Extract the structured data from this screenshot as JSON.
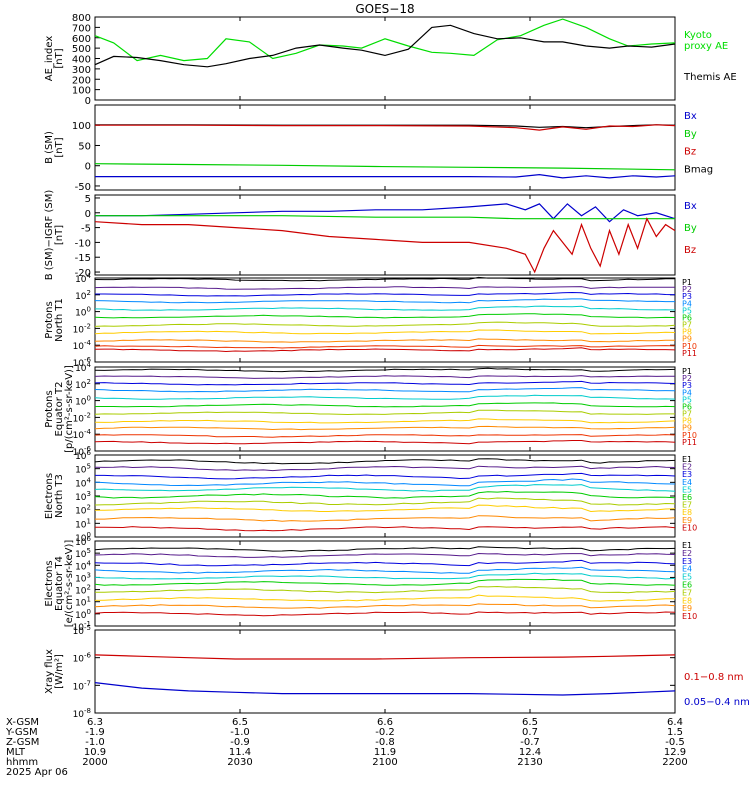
{
  "title": "GOES−18",
  "date_label": "2025 Apr 06",
  "chart_data": [
    {
      "id": "ae",
      "type": "line",
      "ylabel": [
        "AE_index",
        "[nT]"
      ],
      "ylim": [
        0,
        800
      ],
      "yticks": [
        "0",
        "100",
        "200",
        "300",
        "400",
        "500",
        "600",
        "700",
        "800"
      ],
      "legend": [
        {
          "text": "Kyoto",
          "color": "#00dd00"
        },
        {
          "text": "proxy AE",
          "color": "#00dd00"
        },
        {
          "text": "Themis AE",
          "color": "#000000"
        }
      ],
      "series": [
        {
          "name": "Kyoto proxy AE",
          "color": "#00dd00",
          "x": [
            0,
            4,
            9,
            14,
            19,
            24,
            28,
            33,
            38,
            43,
            48,
            53,
            57,
            62,
            67,
            72,
            76,
            81,
            86,
            91,
            96,
            100,
            105,
            110,
            114,
            119,
            124
          ],
          "values": [
            620,
            550,
            380,
            430,
            380,
            400,
            590,
            560,
            400,
            450,
            530,
            520,
            500,
            590,
            520,
            460,
            450,
            430,
            580,
            620,
            720,
            780,
            700,
            590,
            520,
            540,
            550
          ]
        },
        {
          "name": "Themis AE",
          "color": "#000000",
          "x": [
            0,
            4,
            9,
            14,
            19,
            24,
            28,
            33,
            38,
            43,
            48,
            53,
            57,
            62,
            67,
            72,
            76,
            81,
            86,
            91,
            96,
            100,
            105,
            110,
            114,
            119,
            124
          ],
          "values": [
            340,
            420,
            410,
            380,
            340,
            320,
            350,
            400,
            430,
            500,
            530,
            500,
            480,
            430,
            490,
            700,
            720,
            640,
            590,
            600,
            560,
            560,
            520,
            500,
            520,
            510,
            540
          ]
        }
      ]
    },
    {
      "id": "b",
      "type": "line",
      "ylabel": [
        "B (SM)",
        "[nT]"
      ],
      "ylim": [
        -60,
        150
      ],
      "yticks": [
        "-50",
        "0",
        "50",
        "100"
      ],
      "ytick_values": [
        -50,
        0,
        50,
        100
      ],
      "legend": [
        {
          "text": "Bx",
          "color": "#0000cc"
        },
        {
          "text": "By",
          "color": "#00cc00"
        },
        {
          "text": "Bz",
          "color": "#cc0000"
        },
        {
          "text": "Bmag",
          "color": "#000000"
        }
      ],
      "series": [
        {
          "name": "Bmag",
          "color": "#000000",
          "x": [
            0,
            20,
            40,
            60,
            80,
            90,
            95,
            100,
            105,
            110,
            115,
            120,
            124
          ],
          "values": [
            101,
            101,
            100,
            100,
            100,
            98,
            95,
            97,
            94,
            97,
            99,
            101,
            100
          ]
        },
        {
          "name": "Bz",
          "color": "#cc0000",
          "x": [
            0,
            20,
            40,
            60,
            80,
            90,
            95,
            100,
            105,
            110,
            115,
            120,
            124
          ],
          "values": [
            100,
            100,
            99,
            99,
            98,
            94,
            88,
            96,
            90,
            98,
            97,
            101,
            99
          ]
        },
        {
          "name": "By",
          "color": "#00cc00",
          "x": [
            0,
            20,
            40,
            60,
            80,
            100,
            124
          ],
          "values": [
            5,
            3,
            1,
            -2,
            -4,
            -6,
            -10
          ]
        },
        {
          "name": "Bx",
          "color": "#0000cc",
          "x": [
            0,
            20,
            40,
            60,
            80,
            90,
            95,
            100,
            105,
            110,
            115,
            120,
            124
          ],
          "values": [
            -27,
            -27,
            -27,
            -27,
            -27,
            -28,
            -22,
            -30,
            -25,
            -30,
            -25,
            -28,
            -25
          ]
        }
      ]
    },
    {
      "id": "bigrf",
      "type": "line",
      "ylabel": [
        "B (SM)−IGRF (SM)",
        "[nT]"
      ],
      "ylim": [
        -21,
        6
      ],
      "yticks": [
        "-20",
        "-15",
        "-10",
        "-5",
        "0",
        "5"
      ],
      "ytick_values": [
        -20,
        -15,
        -10,
        -5,
        0,
        5
      ],
      "legend": [
        {
          "text": "Bx",
          "color": "#0000cc"
        },
        {
          "text": "By",
          "color": "#00cc00"
        },
        {
          "text": "Bz",
          "color": "#cc0000"
        }
      ],
      "series": [
        {
          "name": "Bx",
          "color": "#0000cc",
          "x": [
            0,
            10,
            20,
            30,
            40,
            50,
            60,
            70,
            80,
            88,
            92,
            95,
            98,
            101,
            104,
            107,
            110,
            113,
            116,
            120,
            124
          ],
          "values": [
            -1,
            -1,
            -0.5,
            0,
            0.5,
            0.5,
            1,
            1,
            2,
            3,
            1,
            3,
            -2,
            3,
            -1,
            2,
            -3,
            1,
            -1,
            0,
            -2
          ]
        },
        {
          "name": "By",
          "color": "#00cc00",
          "x": [
            0,
            20,
            40,
            60,
            80,
            90,
            100,
            110,
            124
          ],
          "values": [
            -1,
            -1,
            -1,
            -1.5,
            -1.5,
            -2,
            -2,
            -2,
            -2
          ]
        },
        {
          "name": "Bz",
          "color": "#cc0000",
          "x": [
            0,
            10,
            20,
            30,
            40,
            50,
            60,
            70,
            80,
            88,
            92,
            94,
            96,
            98,
            100,
            102,
            104,
            106,
            108,
            110,
            112,
            114,
            116,
            118,
            120,
            122,
            124
          ],
          "values": [
            -3,
            -4,
            -4,
            -5,
            -6,
            -8,
            -9,
            -10,
            -10,
            -12,
            -14,
            -20,
            -12,
            -6,
            -10,
            -14,
            -4,
            -12,
            -18,
            -6,
            -14,
            -4,
            -12,
            -2,
            -8,
            -4,
            -6
          ]
        }
      ]
    },
    {
      "id": "pn",
      "type": "line",
      "log": true,
      "ylabel": [
        "Protons",
        "North T1"
      ],
      "ylim_exp": [
        -6,
        4
      ],
      "ytick_exps": [
        -6,
        -4,
        -2,
        0,
        2,
        4
      ],
      "legend_labels": [
        "P1",
        "P2",
        "P3",
        "P4",
        "P5",
        "P6",
        "P7",
        "P8",
        "P9",
        "P10",
        "P11"
      ],
      "legend_colors": [
        "#000000",
        "#551a8b",
        "#0000dd",
        "#0088ff",
        "#00cccc",
        "#00cc00",
        "#aacc00",
        "#ffcc00",
        "#ff8800",
        "#ee3300",
        "#cc0000"
      ],
      "channel_levels": [
        3.8,
        2.8,
        2.0,
        1.2,
        0.3,
        -0.6,
        -1.6,
        -2.5,
        -3.5,
        -4.2,
        -4.6
      ]
    },
    {
      "id": "pe",
      "type": "line",
      "log": true,
      "ylabel": [
        "Protons",
        "Equator T2",
        "[p/(cm²-s-sr-keV)]"
      ],
      "ylim_exp": [
        -6,
        4
      ],
      "ytick_exps": [
        -6,
        -4,
        -2,
        0,
        2,
        4
      ],
      "legend_labels": [
        "P1",
        "P2",
        "P3",
        "P4",
        "P5",
        "P6",
        "P7",
        "P8",
        "P9",
        "P10",
        "P11"
      ],
      "legend_colors": [
        "#000000",
        "#551a8b",
        "#0000dd",
        "#0088ff",
        "#00cccc",
        "#00cc00",
        "#aacc00",
        "#ffcc00",
        "#ff8800",
        "#ee3300",
        "#cc0000"
      ],
      "channel_levels": [
        3.6,
        2.8,
        2.0,
        1.2,
        0.3,
        -0.6,
        -1.5,
        -2.5,
        -3.3,
        -4.2,
        -5.0
      ]
    },
    {
      "id": "en",
      "type": "line",
      "log": true,
      "ylabel": [
        "Electrons",
        "North T3"
      ],
      "ylim_exp": [
        0,
        6
      ],
      "ytick_exps": [
        0,
        1,
        2,
        3,
        4,
        5,
        6
      ],
      "legend_labels": [
        "E1",
        "E2",
        "E3",
        "E4",
        "E5",
        "E6",
        "E7",
        "E8",
        "E9",
        "E10"
      ],
      "legend_colors": [
        "#000000",
        "#551a8b",
        "#0000dd",
        "#0088ff",
        "#00cccc",
        "#00cc00",
        "#aacc00",
        "#ffcc00",
        "#ff8800",
        "#cc0000"
      ],
      "channel_levels": [
        5.5,
        5.0,
        4.4,
        3.9,
        3.5,
        3.0,
        2.5,
        2.0,
        1.3,
        0.6
      ]
    },
    {
      "id": "ee",
      "type": "line",
      "log": true,
      "ylabel": [
        "Electrons",
        "Equator T4",
        "[e/(cm²-s-sr-keV)]"
      ],
      "ylim_exp": [
        -1,
        6
      ],
      "ytick_exps": [
        -1,
        0,
        1,
        2,
        3,
        4,
        5,
        6
      ],
      "legend_labels": [
        "E1",
        "E2",
        "E3",
        "E4",
        "E5",
        "E6",
        "E7",
        "E8",
        "E9",
        "E10"
      ],
      "legend_colors": [
        "#000000",
        "#551a8b",
        "#0000dd",
        "#0088ff",
        "#00cccc",
        "#00cc00",
        "#aacc00",
        "#ffcc00",
        "#ff8800",
        "#cc0000"
      ],
      "channel_levels": [
        5.3,
        4.8,
        4.1,
        3.5,
        3.0,
        2.5,
        1.9,
        1.2,
        0.6,
        0.0
      ]
    },
    {
      "id": "xray",
      "type": "line",
      "log": true,
      "ylabel": [
        "Xray flux",
        "[W/m²]"
      ],
      "ylim_exp": [
        -8,
        -5
      ],
      "ytick_exps": [
        -8,
        -7,
        -6,
        -5
      ],
      "legend": [
        {
          "text": "0.1−0.8 nm",
          "color": "#cc0000"
        },
        {
          "text": "0.05−0.4 nm",
          "color": "#0000cc"
        }
      ],
      "series": [
        {
          "name": "0.1−0.8 nm",
          "color": "#cc0000",
          "x": [
            0,
            10,
            20,
            30,
            40,
            60,
            80,
            100,
            110,
            124
          ],
          "values_exp": [
            -5.9,
            -5.95,
            -6.0,
            -6.05,
            -6.05,
            -6.05,
            -6.0,
            -5.98,
            -5.95,
            -5.9
          ]
        },
        {
          "name": "0.05−0.4 nm",
          "color": "#0000cc",
          "x": [
            0,
            10,
            20,
            30,
            40,
            60,
            80,
            100,
            110,
            124
          ],
          "values_exp": [
            -6.9,
            -7.1,
            -7.2,
            -7.25,
            -7.3,
            -7.3,
            -7.3,
            -7.35,
            -7.3,
            -7.2
          ]
        }
      ]
    }
  ],
  "x_axis": {
    "xlim": [
      0,
      124
    ],
    "rows": [
      {
        "label": "X-GSM",
        "values": [
          "6.3",
          "6.5",
          "6.6",
          "6.5",
          "6.4"
        ]
      },
      {
        "label": "Y-GSM",
        "values": [
          "-1.9",
          "-1.0",
          "-0.2",
          "0.7",
          "1.5"
        ]
      },
      {
        "label": "Z-GSM",
        "values": [
          "-1.0",
          "-0.9",
          "-0.8",
          "-0.7",
          "-0.5"
        ]
      },
      {
        "label": "MLT",
        "values": [
          "10.9",
          "11.4",
          "11.9",
          "12.4",
          "12.9"
        ]
      },
      {
        "label": "hhmm",
        "values": [
          "2000",
          "2030",
          "2100",
          "2130",
          "2200"
        ]
      }
    ]
  }
}
